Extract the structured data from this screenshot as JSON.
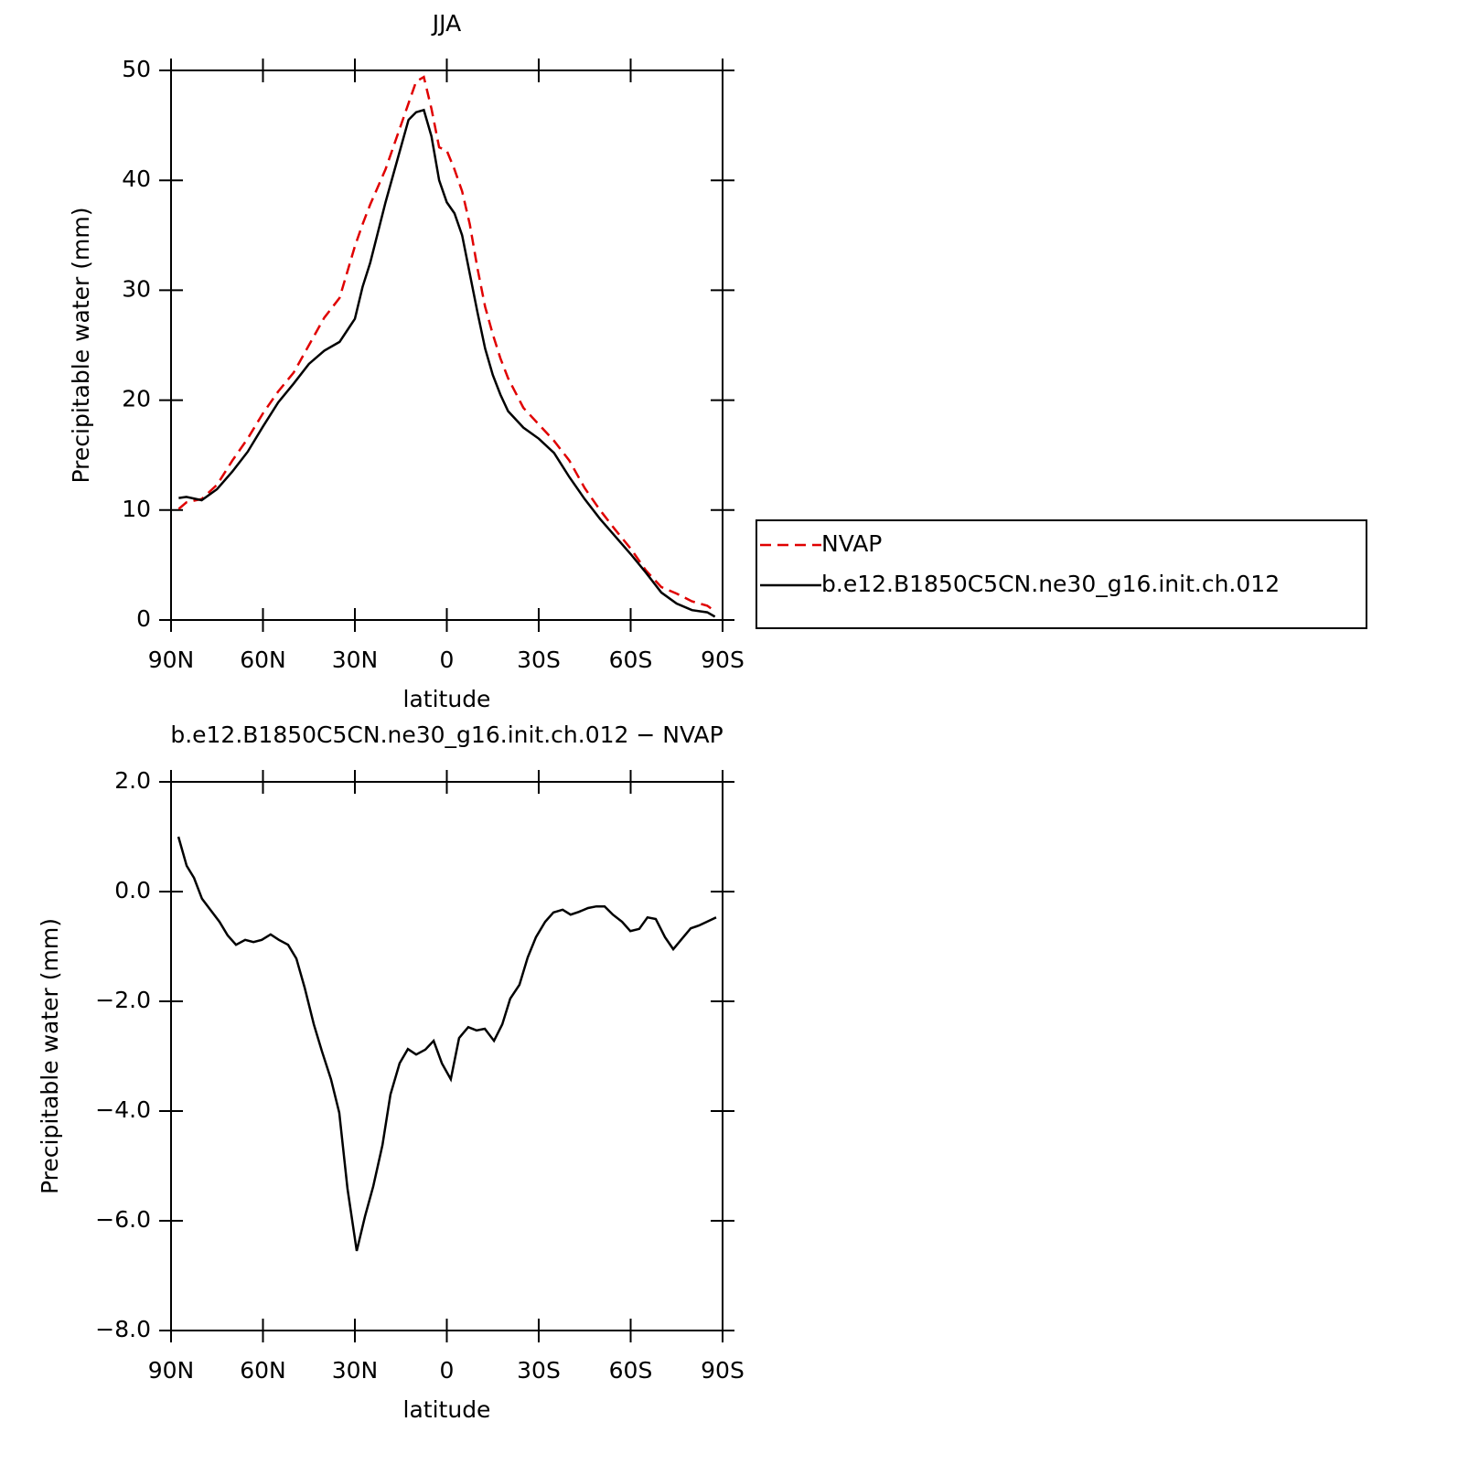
{
  "chart_data": [
    {
      "type": "line",
      "title": "JJA",
      "xlabel": "latitude",
      "ylabel": "Precipitable water (mm)",
      "x": [
        87.5,
        85,
        80,
        75,
        70,
        65,
        60,
        55,
        50,
        45,
        40,
        35,
        30,
        27.5,
        25,
        20,
        15,
        12.5,
        10,
        7.5,
        5,
        2.5,
        0,
        -2.5,
        -5,
        -7.5,
        -10,
        -12.5,
        -15,
        -17.5,
        -20,
        -25,
        -30,
        -35,
        -40,
        -45,
        -50,
        -55,
        -60,
        -65,
        -70,
        -75,
        -80,
        -85,
        -87.5
      ],
      "series": [
        {
          "name": "NVAP",
          "color": "#e00000",
          "dashed": true,
          "values": [
            10.1,
            10.7,
            11.0,
            12.3,
            14.5,
            16.5,
            18.8,
            20.8,
            22.5,
            25.0,
            27.5,
            29.3,
            34.0,
            36.0,
            37.8,
            41.0,
            45.0,
            47.0,
            49.0,
            49.4,
            46.5,
            43.0,
            42.7,
            41.0,
            39.0,
            36.0,
            32.0,
            28.5,
            26.0,
            23.8,
            22.0,
            19.3,
            17.8,
            16.3,
            14.5,
            12.0,
            10.0,
            8.2,
            6.5,
            4.5,
            3.0,
            2.4,
            1.7,
            1.3,
            0.8
          ]
        },
        {
          "name": "b.e12.B1850C5CN.ne30_g16.init.ch.012",
          "color": "#000000",
          "dashed": false,
          "values": [
            11.1,
            11.2,
            10.9,
            11.9,
            13.5,
            15.3,
            17.6,
            19.8,
            21.5,
            23.3,
            24.5,
            25.3,
            27.4,
            30.3,
            32.5,
            38.0,
            43.0,
            45.5,
            46.2,
            46.4,
            44.0,
            40.0,
            38.0,
            37.0,
            35.0,
            31.5,
            28.0,
            24.7,
            22.3,
            20.5,
            19.0,
            17.5,
            16.5,
            15.2,
            13.0,
            11.0,
            9.2,
            7.6,
            6.0,
            4.3,
            2.5,
            1.5,
            0.9,
            0.7,
            0.3
          ]
        }
      ],
      "xlim": [
        90,
        -90
      ],
      "xticks": [
        {
          "value": 90,
          "label": "90N"
        },
        {
          "value": 60,
          "label": "60N"
        },
        {
          "value": 30,
          "label": "30N"
        },
        0,
        {
          "value": -30,
          "label": "30S"
        },
        {
          "value": -60,
          "label": "60S"
        },
        {
          "value": -90,
          "label": "90S"
        }
      ],
      "ylim": [
        0,
        50
      ],
      "yticks": [
        0,
        10,
        20,
        30,
        40,
        50
      ],
      "legend": "outside-right"
    },
    {
      "type": "line",
      "title": "b.e12.B1850C5CN.ne30_g16.init.ch.012 − NVAP",
      "xlabel": "latitude",
      "ylabel": "Precipitable water (mm)",
      "x": [
        87.6,
        84.9,
        82.5,
        79.9,
        77.2,
        74.2,
        71.5,
        68.8,
        65.8,
        63.1,
        60.4,
        57.5,
        54.8,
        51.8,
        49.1,
        46.4,
        43.4,
        40.7,
        37.8,
        35.1,
        32.4,
        29.4,
        26.7,
        24.0,
        21.0,
        18.4,
        15.4,
        12.7,
        10.0,
        7.0,
        4.3,
        1.6,
        -1.3,
        -4.0,
        -7.0,
        -9.7,
        -12.4,
        -15.4,
        -18.1,
        -20.7,
        -23.7,
        -26.4,
        -29.1,
        -32.1,
        -34.8,
        -37.8,
        -40.4,
        -43.1,
        -46.1,
        -48.8,
        -51.5,
        -54.2,
        -57.2,
        -59.9,
        -62.8,
        -65.5,
        -68.2,
        -71.2,
        -73.9,
        -76.6,
        -79.6,
        -82.2,
        -84.9,
        -87.9
      ],
      "series": [
        {
          "name": "b.e12.B1850C5CN.ne30_g16.init.ch.012 − NVAP",
          "color": "#000000",
          "dashed": false,
          "values": [
            1.0,
            0.47,
            0.25,
            -0.13,
            -0.33,
            -0.55,
            -0.8,
            -0.97,
            -0.88,
            -0.92,
            -0.88,
            -0.78,
            -0.88,
            -0.97,
            -1.22,
            -1.75,
            -2.42,
            -2.92,
            -3.42,
            -4.03,
            -5.42,
            -6.55,
            -5.92,
            -5.37,
            -4.62,
            -3.7,
            -3.13,
            -2.87,
            -2.97,
            -2.88,
            -2.72,
            -3.13,
            -3.42,
            -2.67,
            -2.47,
            -2.53,
            -2.5,
            -2.72,
            -2.42,
            -1.95,
            -1.7,
            -1.2,
            -0.83,
            -0.55,
            -0.38,
            -0.33,
            -0.42,
            -0.37,
            -0.3,
            -0.27,
            -0.27,
            -0.42,
            -0.55,
            -0.72,
            -0.68,
            -0.47,
            -0.5,
            -0.83,
            -1.05,
            -0.87,
            -0.67,
            -0.62,
            -0.55,
            -0.47
          ]
        }
      ],
      "xlim": [
        90,
        -90
      ],
      "xticks": [
        {
          "value": 90,
          "label": "90N"
        },
        {
          "value": 60,
          "label": "60N"
        },
        {
          "value": 30,
          "label": "30N"
        },
        0,
        {
          "value": -30,
          "label": "30S"
        },
        {
          "value": -60,
          "label": "60S"
        },
        {
          "value": -90,
          "label": "90S"
        }
      ],
      "ylim": [
        -8,
        2
      ],
      "yticks": [
        {
          "value": -8,
          "label": "−8.0"
        },
        {
          "value": -6,
          "label": "−6.0"
        },
        {
          "value": -4,
          "label": "−4.0"
        },
        {
          "value": -2,
          "label": "−2.0"
        },
        {
          "value": 0,
          "label": "0.0"
        },
        {
          "value": 2,
          "label": "2.0"
        }
      ]
    }
  ]
}
